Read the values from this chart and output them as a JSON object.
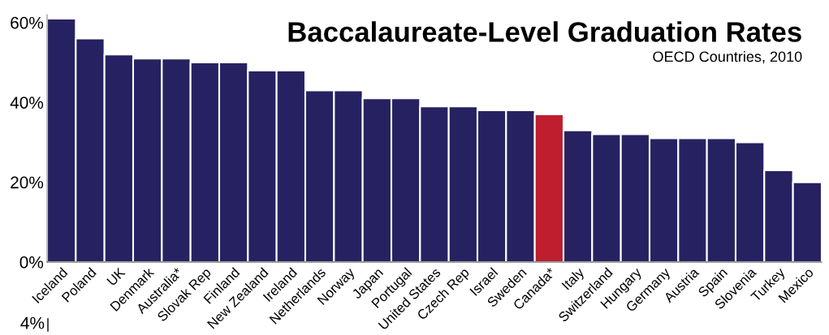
{
  "chart_data": {
    "type": "bar",
    "title": "Baccalaureate-Level Graduation Rates",
    "subtitle": "OECD Countries, 2010",
    "categories": [
      "Iceland",
      "Poland",
      "UK",
      "Denmark",
      "Australia*",
      "Slovak Rep",
      "Finland",
      "New Zealand",
      "Ireland",
      "Netherlands",
      "Norway",
      "Japan",
      "Portugal",
      "United States",
      "Czech Rep",
      "Israel",
      "Sweden",
      "Canada*",
      "Italy",
      "Switzerland",
      "Hungary",
      "Germany",
      "Austria",
      "Spain",
      "Slovenia",
      "Turkey",
      "Mexico"
    ],
    "values": [
      61,
      56,
      52,
      51,
      51,
      50,
      50,
      48,
      48,
      43,
      43,
      41,
      41,
      39,
      39,
      38,
      38,
      37,
      33,
      32,
      32,
      31,
      31,
      31,
      30,
      23,
      20
    ],
    "colors": [
      "#262261",
      "#262261",
      "#262261",
      "#262261",
      "#262261",
      "#262261",
      "#262261",
      "#262261",
      "#262261",
      "#262261",
      "#262261",
      "#262261",
      "#262261",
      "#262261",
      "#262261",
      "#262261",
      "#262261",
      "#be1e2d",
      "#262261",
      "#262261",
      "#262261",
      "#262261",
      "#262261",
      "#262261",
      "#262261",
      "#262261",
      "#262261"
    ],
    "ylim": [
      0,
      62
    ],
    "yticks": [
      {
        "value": 0,
        "label": "0%"
      },
      {
        "value": 20,
        "label": "20%"
      },
      {
        "value": 40,
        "label": "40%"
      },
      {
        "value": 60,
        "label": "60%"
      }
    ],
    "annotations": [
      "4%"
    ],
    "grid": false,
    "legend": false
  }
}
